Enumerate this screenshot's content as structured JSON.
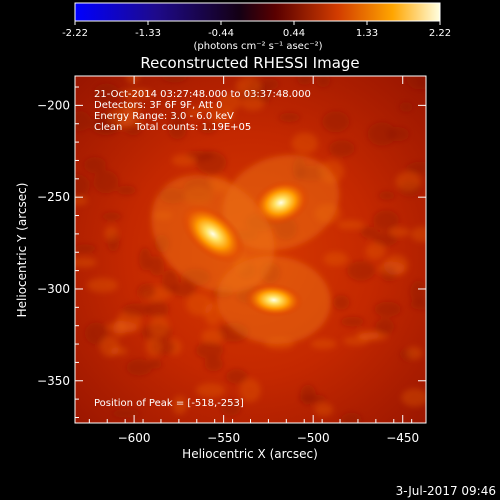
{
  "colorbar": {
    "tick_labels": [
      "-2.22",
      "-1.33",
      "-0.44",
      "0.44",
      "1.33",
      "2.22"
    ],
    "units_label": "(photons cm⁻² s⁻¹ asec⁻²)"
  },
  "chart_data": {
    "type": "heatmap",
    "title": "Reconstructed RHESSI Image",
    "xlabel": "Heliocentric X (arcsec)",
    "ylabel": "Heliocentric Y (arcsec)",
    "xlim": [
      -633,
      -437
    ],
    "ylim": [
      -373,
      -184
    ],
    "x_ticks": [
      -600,
      -550,
      -500,
      -450
    ],
    "y_ticks": [
      -200,
      -250,
      -300,
      -350
    ],
    "x_tick_labels": [
      "−600",
      "−550",
      "−500",
      "−450"
    ],
    "y_tick_labels": [
      "−200",
      "−250",
      "−300",
      "−350"
    ],
    "colorbar_range": [
      -2.22,
      2.22
    ],
    "sources": [
      {
        "x": -518,
        "y": -253,
        "peak": 2.22
      },
      {
        "x": -556,
        "y": -270,
        "peak": 1.9
      },
      {
        "x": -522,
        "y": -306,
        "peak": 1.8
      }
    ],
    "annotations": [
      "21-Oct-2014 03:27:48.000 to 03:37:48.000",
      "Detectors: 3F 6F 9F, Att 0",
      "Energy Range: 3.0 - 6.0 keV",
      "Clean    Total counts: 1.19E+05"
    ],
    "peak_label": "Position of Peak = [-518,-253]"
  },
  "footer": {
    "date": "3-Jul-2017 09:46"
  }
}
